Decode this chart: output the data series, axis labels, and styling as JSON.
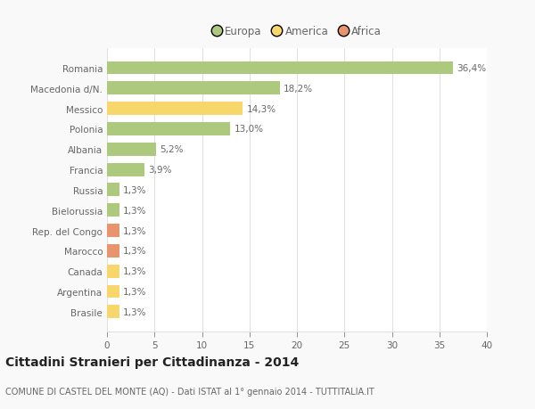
{
  "categories": [
    "Romania",
    "Macedonia d/N.",
    "Messico",
    "Polonia",
    "Albania",
    "Francia",
    "Russia",
    "Bielorussia",
    "Rep. del Congo",
    "Marocco",
    "Canada",
    "Argentina",
    "Brasile"
  ],
  "values": [
    36.4,
    18.2,
    14.3,
    13.0,
    5.2,
    3.9,
    1.3,
    1.3,
    1.3,
    1.3,
    1.3,
    1.3,
    1.3
  ],
  "labels": [
    "36,4%",
    "18,2%",
    "14,3%",
    "13,0%",
    "5,2%",
    "3,9%",
    "1,3%",
    "1,3%",
    "1,3%",
    "1,3%",
    "1,3%",
    "1,3%",
    "1,3%"
  ],
  "continents": [
    "Europa",
    "Europa",
    "America",
    "Europa",
    "Europa",
    "Europa",
    "Europa",
    "Europa",
    "Africa",
    "Africa",
    "America",
    "America",
    "America"
  ],
  "colors": {
    "Europa": "#adc97e",
    "America": "#f7d76b",
    "Africa": "#e8956d"
  },
  "xlim": [
    0,
    40
  ],
  "xticks": [
    0,
    5,
    10,
    15,
    20,
    25,
    30,
    35,
    40
  ],
  "title": "Cittadini Stranieri per Cittadinanza - 2014",
  "subtitle": "COMUNE DI CASTEL DEL MONTE (AQ) - Dati ISTAT al 1° gennaio 2014 - TUTTITALIA.IT",
  "background_color": "#f9f9f9",
  "bar_background": "#ffffff",
  "grid_color": "#e0e0e0",
  "text_color": "#666666",
  "title_color": "#222222",
  "subtitle_color": "#666666",
  "label_fontsize": 7.5,
  "tick_fontsize": 7.5,
  "title_fontsize": 10,
  "subtitle_fontsize": 7,
  "legend_fontsize": 8.5,
  "bar_height": 0.65
}
